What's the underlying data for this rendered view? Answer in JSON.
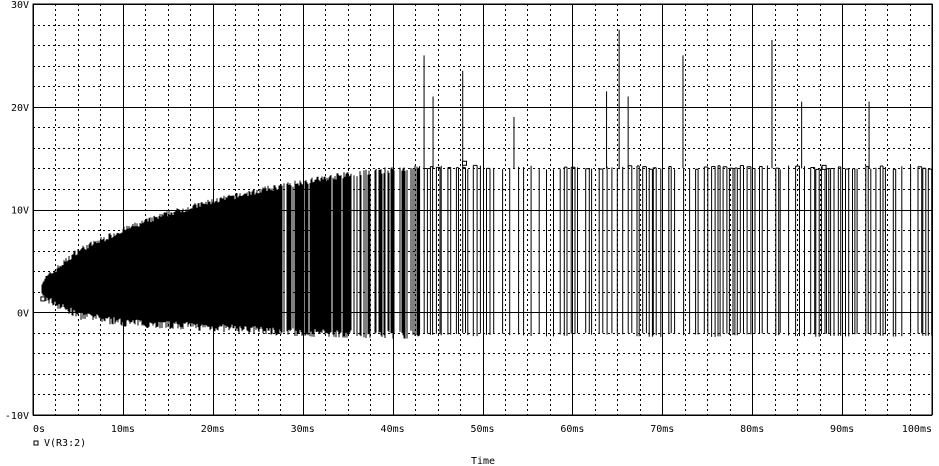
{
  "chart_data": {
    "type": "line",
    "xlabel": "Time",
    "x_ticks": [
      "0s",
      "10ms",
      "20ms",
      "30ms",
      "40ms",
      "50ms",
      "60ms",
      "70ms",
      "80ms",
      "90ms",
      "100ms"
    ],
    "y_ticks": [
      "-10V",
      "0V",
      "10V",
      "20V",
      "30V"
    ],
    "xlim": [
      0,
      100
    ],
    "ylim": [
      -10,
      30
    ],
    "grid": true,
    "legend_position": "bottom-left",
    "series": [
      {
        "name": "V(R3:2)",
        "marker": "square",
        "color": "#000000",
        "description_points": {
          "upper_envelope_x_ms": [
            1,
            5,
            10,
            15,
            20,
            25,
            30,
            35,
            40,
            43,
            100
          ],
          "upper_envelope_y_V": [
            3,
            6,
            8,
            9.6,
            10.8,
            11.8,
            12.7,
            13.4,
            13.9,
            14.1,
            14.1
          ],
          "lower_envelope_x_ms": [
            1,
            5,
            10,
            20,
            30,
            40,
            100
          ],
          "lower_envelope_y_V": [
            1.5,
            -0.3,
            -1.0,
            -1.5,
            -2.0,
            -2.2,
            -2.2
          ],
          "spike_peaks_x_ms": [
            43.5,
            44.5,
            47.8,
            53.5,
            63.8,
            65.2,
            66.2,
            72.3,
            82.2,
            85.5,
            93.0
          ],
          "spike_peaks_y_V": [
            25,
            21,
            23.5,
            19,
            21.5,
            27.5,
            21,
            25,
            26.5,
            20.5,
            20.5
          ]
        }
      }
    ]
  }
}
